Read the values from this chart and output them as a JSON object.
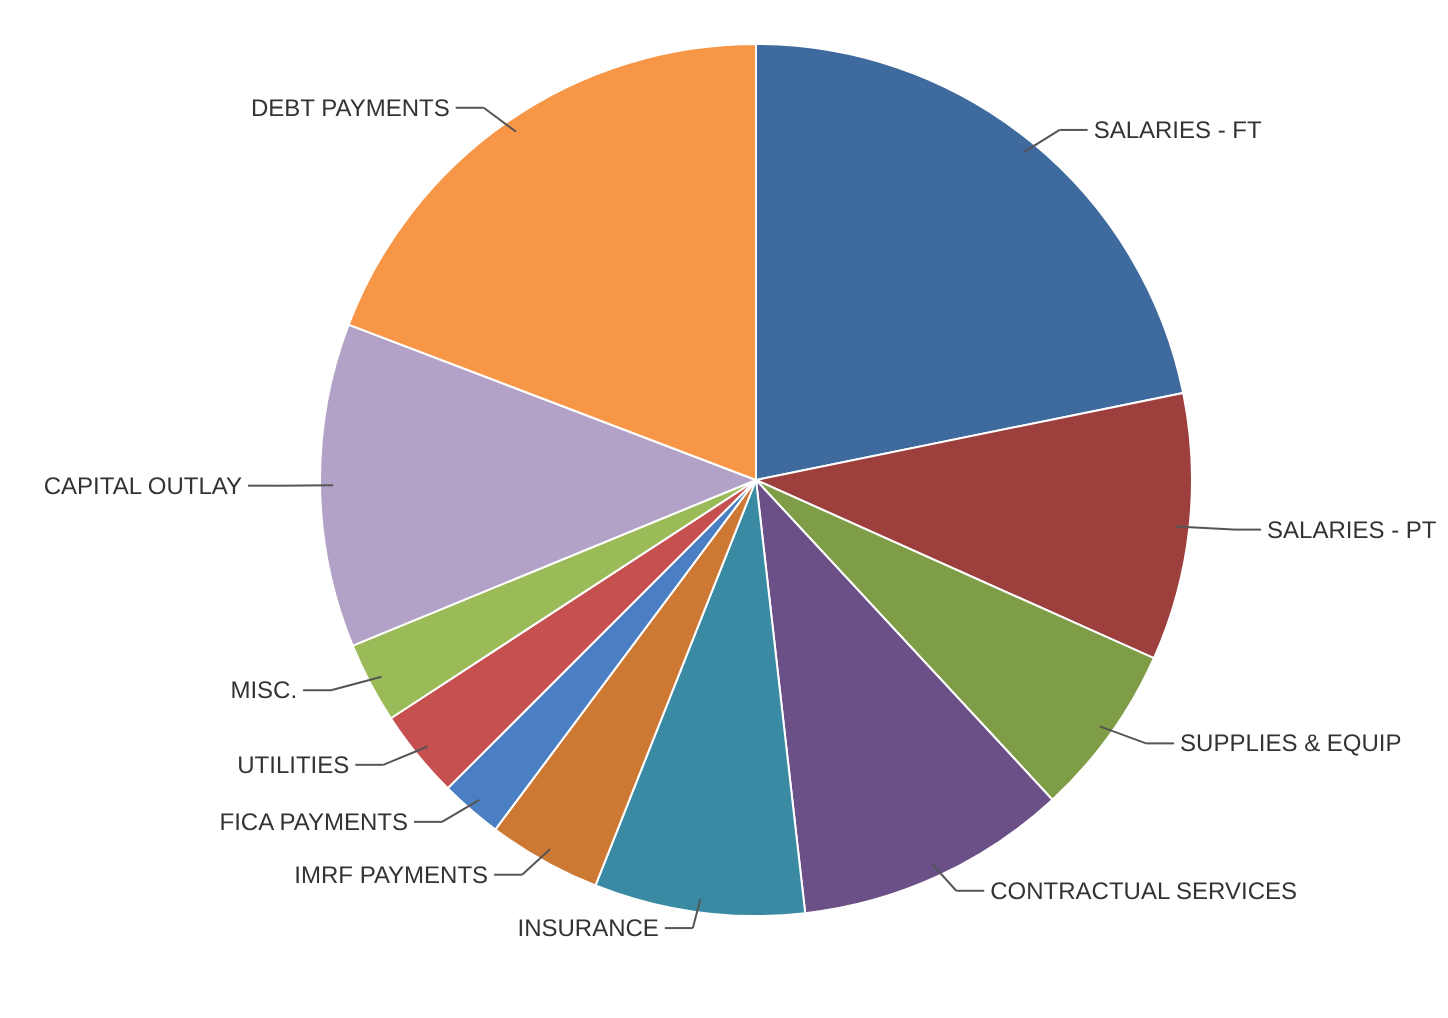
{
  "chart_data": {
    "type": "pie",
    "categories": [
      "SALARIES - FT",
      "SALARIES - PT",
      "SUPPLIES & EQUIP",
      "CONTRACTUAL SERVICES",
      "INSURANCE",
      "IMRF PAYMENTS",
      "FICA PAYMENTS",
      "UTILITIES",
      "MISC.",
      "CAPITAL OUTLAY",
      "DEBT PAYMENTS"
    ],
    "values": [
      21.8,
      9.9,
      6.4,
      10.1,
      7.8,
      4.2,
      2.3,
      3.3,
      3.0,
      12.0,
      19.2
    ],
    "colors": [
      "#3e6a9e",
      "#9c3f3d",
      "#7f9c47",
      "#6a5087",
      "#3a8aa3",
      "#cd7833",
      "#4a7fc4",
      "#c64f4f",
      "#9bbb59",
      "#b3a2c7",
      "#f79646"
    ]
  }
}
